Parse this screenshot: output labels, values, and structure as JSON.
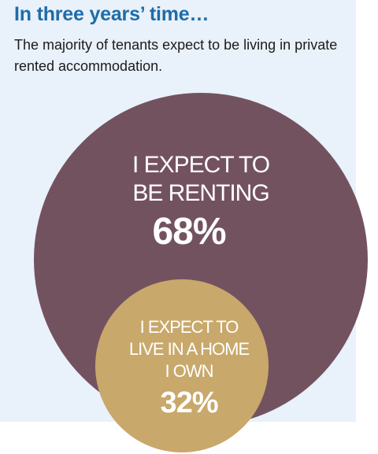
{
  "header": {
    "title": "In three years’ time…",
    "subtitle": "The majority of tenants expect to be living in private rented accommodation."
  },
  "chart_data": {
    "type": "bubble",
    "series": [
      {
        "label_lines": [
          "I EXPECT TO",
          "BE RENTING"
        ],
        "value": 68,
        "value_label": "68%",
        "color": "#735260"
      },
      {
        "label_lines": [
          "I EXPECT TO",
          "LIVE IN A HOME",
          "I OWN"
        ],
        "value": 32,
        "value_label": "32%",
        "color": "#c8a86b"
      }
    ]
  }
}
